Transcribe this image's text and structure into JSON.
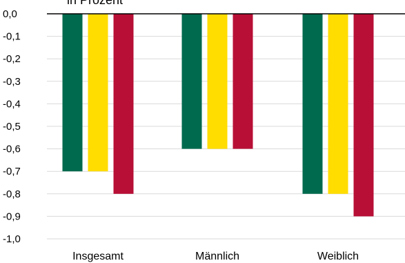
{
  "chart_data": {
    "type": "bar",
    "ylabel": "in Prozent",
    "categories": [
      "Insgesamt",
      "Männlich",
      "Weiblich"
    ],
    "series": [
      {
        "color": "#006a4e",
        "values": [
          -0.7,
          -0.6,
          -0.8
        ]
      },
      {
        "color": "#ffdd00",
        "values": [
          -0.7,
          -0.6,
          -0.8
        ]
      },
      {
        "color": "#b80f36",
        "values": [
          -0.8,
          -0.6,
          -0.9
        ]
      }
    ],
    "ylim": [
      -1.0,
      0.0
    ],
    "yticks": [
      "0,0",
      "-0,1",
      "-0,2",
      "-0,3",
      "-0,4",
      "-0,5",
      "-0,6",
      "-0,7",
      "-0,8",
      "-0,9",
      "-1,0"
    ],
    "grid": true,
    "legend": "none"
  }
}
